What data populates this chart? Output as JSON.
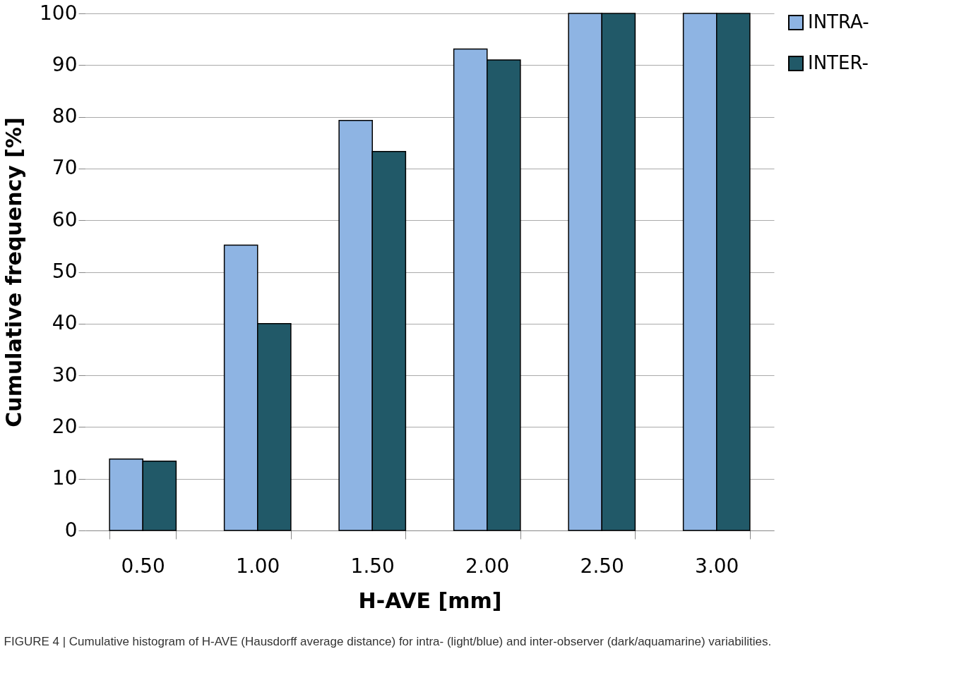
{
  "chart_data": {
    "type": "bar",
    "categories": [
      "0.50",
      "1.00",
      "1.50",
      "2.00",
      "2.50",
      "3.00"
    ],
    "series": [
      {
        "name": "INTRA-",
        "color": "#8eb4e3",
        "values": [
          13.8,
          55.2,
          79.3,
          93.1,
          100,
          100
        ]
      },
      {
        "name": "INTER-",
        "color": "#215968",
        "values": [
          13.4,
          40,
          73.3,
          91,
          100,
          100
        ]
      }
    ],
    "xlabel": "H-AVE [mm]",
    "ylabel": "Cumulative frequency [%]",
    "ylim": [
      0,
      100
    ],
    "yticks": [
      0,
      10,
      20,
      30,
      40,
      50,
      60,
      70,
      80,
      90,
      100
    ],
    "grid": "y",
    "legend": "right",
    "annotations": [
      "FIGURE 4 | Cumulative histogram of H-AVE (Hausdorff average distance) for intra- (light/blue) and inter-observer (dark/aquamarine) variabilities."
    ]
  }
}
